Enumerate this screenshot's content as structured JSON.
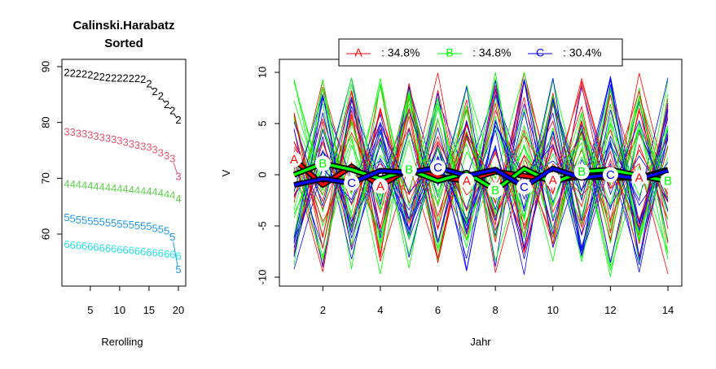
{
  "chart_data": [
    {
      "type": "line",
      "title": "Calinski.Harabatz\nSorted",
      "xlabel": "Rerolling",
      "ylabel": "",
      "xlim": [
        1,
        20
      ],
      "ylim": [
        55,
        90
      ],
      "x_ticks": [
        5,
        10,
        15,
        20
      ],
      "y_ticks": [
        60,
        70,
        80,
        90
      ],
      "x": [
        1,
        2,
        3,
        4,
        5,
        6,
        7,
        8,
        9,
        10,
        11,
        12,
        13,
        14,
        15,
        16,
        17,
        18,
        19,
        20
      ],
      "series": [
        {
          "name": "2",
          "color": "#000000",
          "values": [
            88.8,
            88.7,
            88.6,
            88.5,
            88.4,
            88.2,
            88.0,
            87.9,
            87.8,
            87.8,
            87.8,
            87.7,
            87.7,
            87.6,
            86.8,
            85.4,
            84.6,
            83.1,
            82.0,
            80.3
          ]
        },
        {
          "name": "3",
          "color": "#DF536B",
          "values": [
            78.2,
            78.1,
            77.9,
            77.8,
            77.6,
            77.4,
            77.2,
            77.0,
            76.8,
            76.6,
            76.3,
            76.0,
            75.8,
            75.6,
            75.4,
            75.0,
            74.4,
            73.9,
            73.4,
            70.2
          ]
        },
        {
          "name": "4",
          "color": "#61D04F",
          "values": [
            68.9,
            68.8,
            68.7,
            68.6,
            68.5,
            68.4,
            68.3,
            68.2,
            68.1,
            68.0,
            67.9,
            67.8,
            67.7,
            67.6,
            67.5,
            67.4,
            67.2,
            67.0,
            66.8,
            66.2
          ]
        },
        {
          "name": "5",
          "color": "#2297E6",
          "values": [
            62.8,
            62.6,
            62.4,
            62.3,
            62.2,
            62.1,
            62.0,
            61.9,
            61.8,
            61.7,
            61.6,
            61.5,
            61.4,
            61.3,
            61.2,
            60.9,
            60.7,
            60.4,
            59.3,
            53.5
          ]
        },
        {
          "name": "6",
          "color": "#28E2E5",
          "values": [
            58.0,
            57.9,
            57.8,
            57.7,
            57.6,
            57.5,
            57.4,
            57.3,
            57.2,
            57.1,
            57.0,
            56.9,
            56.8,
            56.7,
            56.6,
            56.5,
            56.4,
            56.3,
            56.2,
            55.9
          ]
        }
      ]
    },
    {
      "type": "line",
      "title": "",
      "xlabel": "Jahr",
      "ylabel": "V",
      "xlim": [
        1,
        14
      ],
      "ylim": [
        -10,
        10
      ],
      "x_ticks": [
        2,
        4,
        6,
        8,
        10,
        12,
        14
      ],
      "y_ticks": [
        -10,
        -5,
        0,
        5,
        10
      ],
      "legend_position": "top",
      "legend": [
        {
          "letter": "A",
          "text": ": 34.8%",
          "color": "#FF0000"
        },
        {
          "letter": "B",
          "text": ": 34.8%",
          "color": "#00FF00"
        },
        {
          "letter": "C",
          "text": ": 30.4%",
          "color": "#0000FF"
        }
      ],
      "x": [
        1,
        2,
        3,
        4,
        5,
        6,
        7,
        8,
        9,
        10,
        11,
        12,
        13,
        14
      ],
      "mean_trajectories": [
        {
          "name": "A",
          "color": "#FF0000",
          "values": [
            1.5,
            -1.0,
            0.8,
            -1.1,
            0.6,
            -0.2,
            -0.6,
            0.3,
            -0.1,
            -0.5,
            -0.2,
            -0.3,
            -0.3,
            0.5
          ],
          "label_x": [
            1,
            4,
            7,
            10,
            13
          ]
        },
        {
          "name": "B",
          "color": "#00FF00",
          "values": [
            0.0,
            1.1,
            0.5,
            -0.4,
            0.5,
            -0.6,
            0.2,
            -1.5,
            0.6,
            -0.8,
            0.3,
            0.5,
            -0.1,
            -0.6
          ],
          "label_x": [
            2,
            5,
            8,
            11,
            14
          ]
        },
        {
          "name": "C",
          "color": "#0000FF",
          "values": [
            -1.0,
            -0.4,
            -0.8,
            0.4,
            0.2,
            0.7,
            -0.1,
            0.5,
            -1.2,
            0.6,
            -0.3,
            0.0,
            -0.4,
            0.4
          ],
          "label_x": [
            3,
            6,
            9,
            12
          ]
        }
      ],
      "individual_trajectories": {
        "description_counts": {
          "A": 16,
          "B": 16,
          "C": 14
        },
        "amplitude_range": [
          -10,
          10
        ]
      }
    }
  ]
}
